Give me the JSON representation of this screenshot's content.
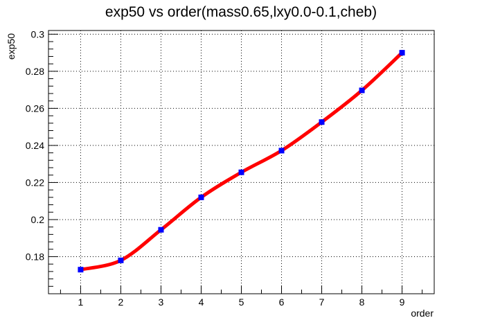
{
  "chart_data": {
    "type": "line",
    "title": "exp50 vs order(mass0.65,lxy0.0-0.1,cheb)",
    "xlabel": "order",
    "ylabel": "exp50",
    "xlim": [
      0.2,
      9.8
    ],
    "ylim": [
      0.16,
      0.302
    ],
    "x_ticks": [
      1,
      2,
      3,
      4,
      5,
      6,
      7,
      8,
      9
    ],
    "y_ticks": [
      0.18,
      0.2,
      0.22,
      0.24,
      0.26,
      0.28,
      0.3
    ],
    "y_tick_labels": [
      "0.18",
      "0.2",
      "0.22",
      "0.24",
      "0.26",
      "0.28",
      "0.3"
    ],
    "grid": true,
    "series": [
      {
        "x": [
          1,
          2,
          3,
          4,
          5,
          6,
          7,
          8,
          9
        ],
        "values": [
          0.173,
          0.178,
          0.1945,
          0.212,
          0.2255,
          0.2372,
          0.2526,
          0.2697,
          0.29
        ]
      }
    ],
    "colors": {
      "line": "#ff0000",
      "marker": "#0000ff",
      "axis": "#000000",
      "grid": "#000000"
    }
  }
}
